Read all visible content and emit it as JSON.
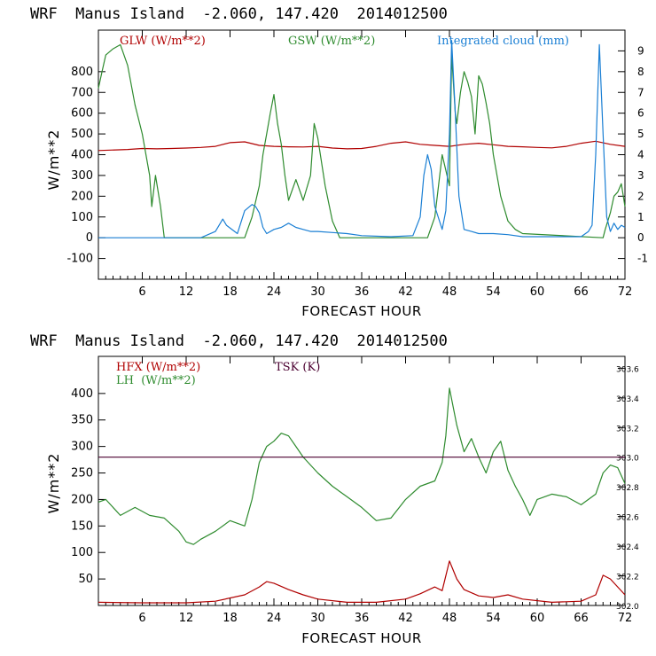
{
  "chart_data": [
    {
      "type": "line",
      "title": "WRF  Manus Island  -2.060, 147.420  2014012500",
      "xlabel": "FORECAST HOUR",
      "ylabel": "W/m**2",
      "xlim": [
        0,
        72
      ],
      "ylim": [
        -200,
        1000
      ],
      "x_ticks": [
        "6",
        "12",
        "18",
        "24",
        "30",
        "36",
        "42",
        "48",
        "54",
        "60",
        "66",
        "72"
      ],
      "y_ticks": [
        "-100",
        "0",
        "100",
        "200",
        "300",
        "400",
        "500",
        "600",
        "700",
        "800"
      ],
      "right_ylim": [
        -2,
        10
      ],
      "right_ticks": [
        "-1",
        "0",
        "1",
        "2",
        "3",
        "4",
        "5",
        "6",
        "7",
        "8",
        "9"
      ],
      "legend": [
        "GLW (W/m**2)",
        "GSW (W/m**2)",
        "Integrated cloud (mm)"
      ],
      "series": [
        {
          "name": "GLW (W/m**2)",
          "color": "#b00000",
          "axis": "left",
          "x": [
            0,
            4,
            6,
            8,
            10,
            12,
            14,
            16,
            18,
            20,
            22,
            24,
            26,
            28,
            30,
            32,
            34,
            36,
            38,
            40,
            42,
            44,
            46,
            48,
            50,
            52,
            54,
            56,
            58,
            60,
            62,
            64,
            66,
            68,
            70,
            72
          ],
          "values": [
            420,
            425,
            430,
            428,
            430,
            432,
            435,
            440,
            458,
            462,
            445,
            440,
            438,
            437,
            440,
            432,
            428,
            430,
            440,
            455,
            462,
            450,
            445,
            440,
            450,
            455,
            448,
            440,
            438,
            435,
            433,
            440,
            455,
            465,
            450,
            440
          ]
        },
        {
          "name": "GSW (W/m**2)",
          "color": "#2e8b2e",
          "axis": "left",
          "x": [
            0,
            0.5,
            1,
            2,
            3,
            4,
            5,
            6,
            7,
            7.3,
            7.8,
            8.5,
            9,
            20,
            21,
            22,
            22.5,
            23,
            23.5,
            24,
            24.5,
            25,
            25.5,
            26,
            27,
            28,
            29,
            29.5,
            30,
            31,
            32,
            33,
            45,
            46,
            47,
            48,
            48.3,
            48.8,
            49,
            49.5,
            50,
            50.5,
            51,
            51.5,
            52,
            52.5,
            53,
            53.5,
            54,
            55,
            56,
            57,
            58,
            69,
            69.3,
            70,
            70.5,
            71,
            71.5,
            72
          ],
          "values": [
            720,
            800,
            880,
            910,
            930,
            830,
            640,
            500,
            300,
            150,
            300,
            150,
            0,
            0,
            100,
            250,
            400,
            500,
            600,
            690,
            550,
            450,
            300,
            180,
            280,
            180,
            300,
            550,
            480,
            250,
            80,
            0,
            0,
            100,
            400,
            250,
            880,
            600,
            550,
            700,
            800,
            750,
            680,
            500,
            780,
            740,
            650,
            550,
            400,
            200,
            80,
            40,
            20,
            0,
            40,
            120,
            200,
            220,
            260,
            150
          ]
        },
        {
          "name": "Integrated cloud (mm)",
          "color": "#1a7fd4",
          "axis": "right",
          "x": [
            0,
            14,
            16,
            17,
            17.5,
            19,
            20,
            21,
            21.5,
            22,
            22.5,
            23,
            24,
            25,
            26,
            27,
            28,
            29,
            30,
            32,
            34,
            36,
            40,
            43,
            44,
            44.5,
            45,
            45.5,
            46,
            47,
            47.5,
            48,
            48.3,
            48.8,
            49.3,
            50,
            51,
            52,
            54,
            56,
            58,
            66,
            67,
            67.5,
            68,
            68.5,
            69,
            69.5,
            70,
            70.5,
            71,
            71.5,
            72
          ],
          "values": [
            0,
            0,
            0.3,
            0.9,
            0.6,
            0.2,
            1.3,
            1.6,
            1.5,
            1.2,
            0.5,
            0.2,
            0.4,
            0.5,
            0.7,
            0.5,
            0.4,
            0.3,
            0.3,
            0.25,
            0.2,
            0.1,
            0.05,
            0.1,
            1.0,
            3.0,
            4.0,
            3.3,
            1.5,
            0.4,
            1.3,
            5.0,
            9.5,
            6.0,
            2.0,
            0.4,
            0.3,
            0.2,
            0.2,
            0.15,
            0.05,
            0.05,
            0.3,
            0.6,
            4.0,
            9.3,
            5.0,
            1.0,
            0.3,
            0.7,
            0.4,
            0.6,
            0.5
          ]
        }
      ]
    },
    {
      "type": "line",
      "title": "WRF  Manus Island  -2.060, 147.420  2014012500",
      "xlabel": "FORECAST HOUR",
      "ylabel": "W/m**2",
      "xlim": [
        0,
        72
      ],
      "ylim": [
        0,
        470
      ],
      "x_ticks": [
        "6",
        "12",
        "18",
        "24",
        "30",
        "36",
        "42",
        "48",
        "54",
        "60",
        "66",
        "72"
      ],
      "y_ticks": [
        "50",
        "100",
        "150",
        "200",
        "250",
        "300",
        "350",
        "400"
      ],
      "right_ylim": [
        302.0,
        303.68
      ],
      "right_ticks": [
        "302.0",
        "302.2",
        "302.4",
        "302.6",
        "302.8",
        "303.0",
        "303.2",
        "303.4",
        "303.6"
      ],
      "legend": [
        "HFX (W/m**2)",
        "LH  (W/m**2)",
        "TSK (K)"
      ],
      "series": [
        {
          "name": "HFX (W/m**2)",
          "color": "#b00000",
          "axis": "left",
          "x": [
            0,
            6,
            12,
            16,
            20,
            22,
            23,
            24,
            26,
            28,
            30,
            34,
            38,
            42,
            44,
            46,
            47,
            48,
            49,
            50,
            52,
            54,
            56,
            58,
            62,
            66,
            68,
            69,
            70,
            71,
            72
          ],
          "values": [
            6,
            5,
            5,
            8,
            20,
            35,
            45,
            42,
            30,
            20,
            12,
            6,
            6,
            12,
            22,
            35,
            28,
            84,
            50,
            30,
            18,
            15,
            20,
            12,
            6,
            8,
            20,
            57,
            50,
            35,
            20
          ]
        },
        {
          "name": "LH  (W/m**2)",
          "color": "#2e8b2e",
          "axis": "left",
          "x": [
            0,
            1,
            3,
            5,
            7,
            9,
            11,
            12,
            13,
            14,
            16,
            18,
            20,
            21,
            22,
            23,
            24,
            25,
            26,
            27,
            28,
            30,
            32,
            34,
            36,
            38,
            40,
            42,
            44,
            46,
            47,
            47.5,
            48,
            49,
            50,
            51,
            52,
            53,
            54,
            55,
            56,
            57,
            58,
            59,
            60,
            62,
            64,
            66,
            68,
            69,
            70,
            71,
            72
          ],
          "values": [
            195,
            200,
            170,
            185,
            170,
            165,
            140,
            120,
            115,
            125,
            140,
            160,
            150,
            200,
            270,
            300,
            310,
            325,
            320,
            300,
            280,
            250,
            225,
            205,
            185,
            160,
            165,
            200,
            225,
            235,
            270,
            320,
            410,
            340,
            290,
            315,
            280,
            250,
            290,
            310,
            255,
            225,
            200,
            170,
            200,
            210,
            205,
            190,
            210,
            250,
            265,
            260,
            230
          ]
        },
        {
          "name": "TSK (K)",
          "color": "#4b0030",
          "axis": "right",
          "x": [
            0,
            72
          ],
          "values": [
            303.0,
            303.0
          ]
        }
      ]
    }
  ]
}
